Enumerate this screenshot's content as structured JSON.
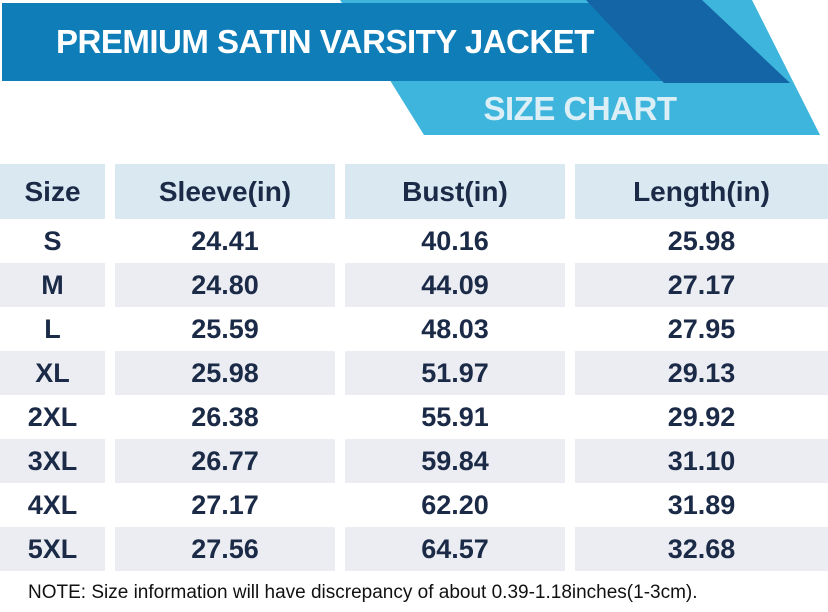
{
  "header": {
    "title": "PREMIUM SATIN VARSITY JACKET",
    "subtitle": "SIZE CHART"
  },
  "colors": {
    "ribbon_blue": "#0f7db8",
    "ribbon_dark_blue": "#1365a5",
    "ribbon_cyan": "#3eb5dc",
    "subtitle_text": "#dceff7",
    "table_header_bg": "#d9e8f1",
    "table_alt_row_bg": "#ebedf2",
    "table_text": "#1b2a47",
    "note_text": "#111111"
  },
  "table": {
    "columns": [
      "Size",
      "Sleeve(in)",
      "Bust(in)",
      "Length(in)"
    ],
    "rows": [
      [
        "S",
        "24.41",
        "40.16",
        "25.98"
      ],
      [
        "M",
        "24.80",
        "44.09",
        "27.17"
      ],
      [
        "L",
        "25.59",
        "48.03",
        "27.95"
      ],
      [
        "XL",
        "25.98",
        "51.97",
        "29.13"
      ],
      [
        "2XL",
        "26.38",
        "55.91",
        "29.92"
      ],
      [
        "3XL",
        "26.77",
        "59.84",
        "31.10"
      ],
      [
        "4XL",
        "27.17",
        "62.20",
        "31.89"
      ],
      [
        "5XL",
        "27.56",
        "64.57",
        "32.68"
      ]
    ]
  },
  "note": "NOTE: Size information will have discrepancy of about 0.39-1.18inches(1-3cm)."
}
